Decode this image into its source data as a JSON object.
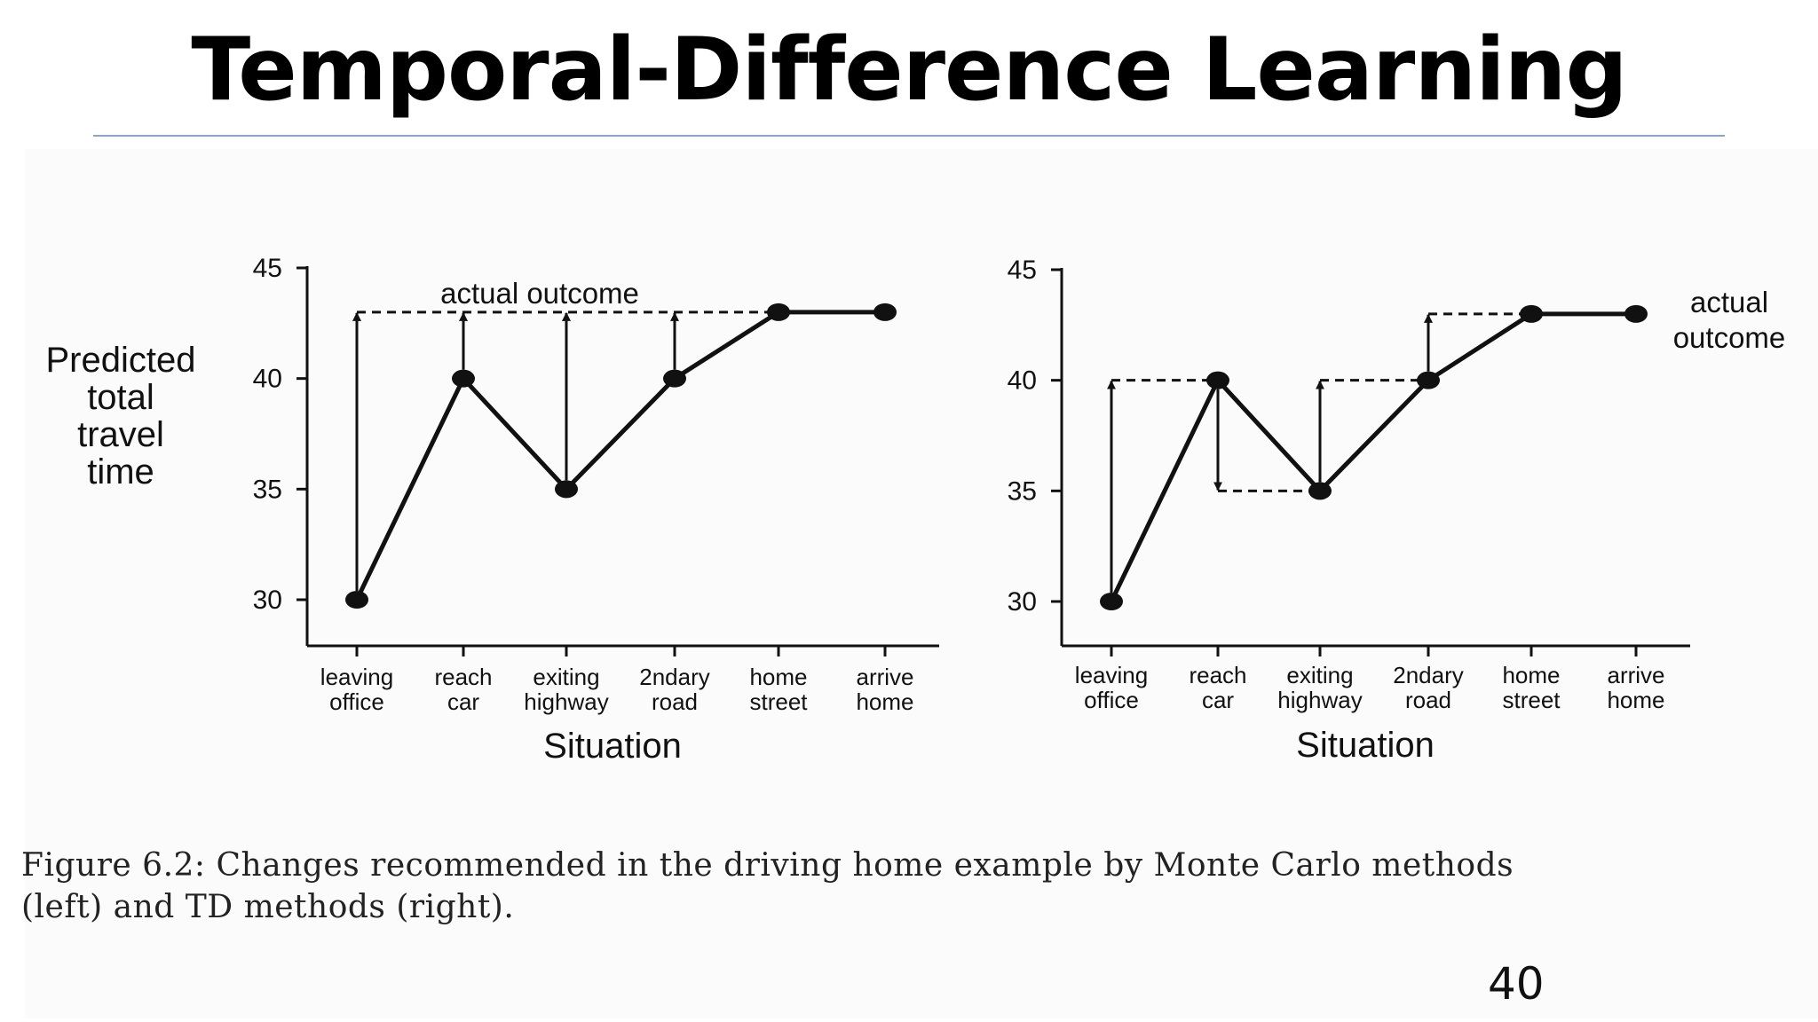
{
  "slide": {
    "title": "Temporal-Difference Learning",
    "caption_line1": "Figure 6.2:  Changes recommended in the driving home example by Monte Carlo methods",
    "caption_line2": "(left) and TD methods (right).",
    "page_number": "40"
  },
  "chart_data": [
    {
      "type": "line",
      "categories": [
        [
          "leaving",
          "office"
        ],
        [
          "reach",
          "car"
        ],
        [
          "exiting",
          "highway"
        ],
        [
          "2ndary",
          "road"
        ],
        [
          "home",
          "street"
        ],
        [
          "arrive",
          "home"
        ]
      ],
      "values": [
        30,
        40,
        35,
        40,
        43,
        43
      ],
      "ylim": [
        30,
        45
      ],
      "yticks": [
        30,
        35,
        40,
        45
      ],
      "xlabel": "Situation",
      "ylabel": [
        "Predicted",
        "total",
        "travel",
        "time"
      ],
      "annotation": [
        "actual outcome"
      ],
      "actual_outcome": 43,
      "arrows": [
        {
          "from_index": 0,
          "from": 30,
          "to": 43
        },
        {
          "from_index": 1,
          "from": 40,
          "to": 43
        },
        {
          "from_index": 2,
          "from": 35,
          "to": 43
        },
        {
          "from_index": 3,
          "from": 40,
          "to": 43
        }
      ]
    },
    {
      "type": "line",
      "categories": [
        [
          "leaving",
          "office"
        ],
        [
          "reach",
          "car"
        ],
        [
          "exiting",
          "highway"
        ],
        [
          "2ndary",
          "road"
        ],
        [
          "home",
          "street"
        ],
        [
          "arrive",
          "home"
        ]
      ],
      "values": [
        30,
        40,
        35,
        40,
        43,
        43
      ],
      "ylim": [
        30,
        45
      ],
      "yticks": [
        30,
        35,
        40,
        45
      ],
      "xlabel": "Situation",
      "ylabel": [],
      "annotation": [
        "actual",
        "outcome"
      ],
      "actual_outcome": 43,
      "arrows": [
        {
          "from_index": 0,
          "from": 30,
          "to": 40
        },
        {
          "from_index": 1,
          "from": 40,
          "to": 35
        },
        {
          "from_index": 2,
          "from": 35,
          "to": 40
        },
        {
          "from_index": 3,
          "from": 40,
          "to": 43
        }
      ]
    }
  ]
}
